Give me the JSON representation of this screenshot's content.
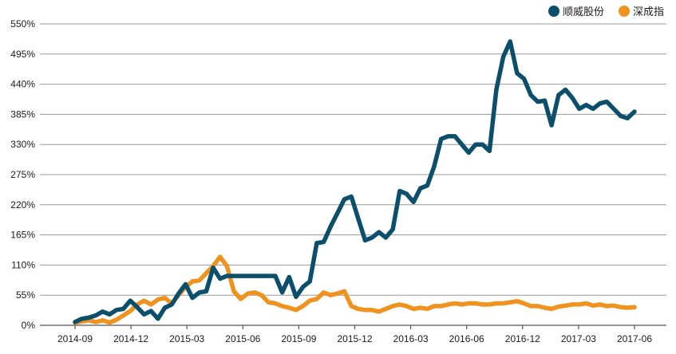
{
  "chart_data": {
    "type": "line",
    "title": "",
    "xlabel": "",
    "ylabel": "",
    "ylim": [
      0,
      550
    ],
    "y_ticks": [
      0,
      55,
      110,
      165,
      220,
      275,
      330,
      385,
      440,
      495,
      550
    ],
    "y_tick_labels": [
      "0%",
      "55%",
      "110%",
      "165%",
      "220%",
      "275%",
      "330%",
      "385%",
      "440%",
      "495%",
      "550%"
    ],
    "x_ticks": [
      "2014-09",
      "2014-12",
      "2015-03",
      "2015-06",
      "2015-09",
      "2015-12",
      "2016-03",
      "2016-06",
      "2016-12",
      "2017-03",
      "2017-06"
    ],
    "grid": true,
    "legend_position": "top-right",
    "series": [
      {
        "name": "顺威股份",
        "color": "#0b4f6c",
        "values": [
          6,
          12,
          14,
          18,
          25,
          20,
          28,
          30,
          45,
          33,
          20,
          26,
          12,
          32,
          38,
          58,
          75,
          50,
          60,
          62,
          105,
          85,
          90,
          90,
          90,
          90,
          90,
          90,
          90,
          90,
          60,
          88,
          52,
          70,
          80,
          150,
          152,
          180,
          205,
          230,
          235,
          195,
          155,
          160,
          170,
          160,
          175,
          245,
          240,
          225,
          250,
          255,
          290,
          340,
          345,
          345,
          330,
          315,
          330,
          330,
          318,
          430,
          490,
          518,
          460,
          450,
          420,
          408,
          410,
          365,
          420,
          430,
          415,
          395,
          402,
          395,
          405,
          408,
          395,
          382,
          378,
          390
        ]
      },
      {
        "name": "深成指",
        "color": "#f0931e",
        "values": [
          5,
          7,
          9,
          6,
          9,
          5,
          10,
          18,
          26,
          38,
          45,
          38,
          47,
          50,
          40,
          55,
          70,
          80,
          82,
          95,
          108,
          125,
          108,
          62,
          48,
          58,
          60,
          55,
          42,
          40,
          35,
          32,
          28,
          35,
          45,
          48,
          60,
          55,
          58,
          62,
          35,
          30,
          28,
          28,
          25,
          30,
          35,
          38,
          35,
          30,
          32,
          30,
          35,
          35,
          38,
          40,
          38,
          40,
          40,
          38,
          38,
          40,
          40,
          42,
          44,
          40,
          35,
          35,
          32,
          30,
          34,
          36,
          38,
          38,
          40,
          36,
          38,
          35,
          36,
          33,
          32,
          33
        ]
      }
    ]
  }
}
